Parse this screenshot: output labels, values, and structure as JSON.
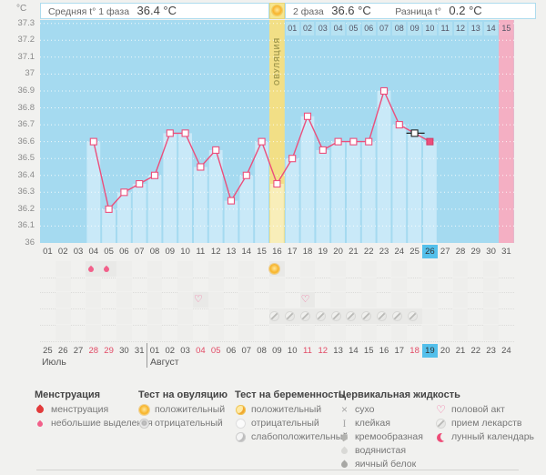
{
  "header": {
    "unit_label": "°C",
    "phase1_label": "Средняя t° 1 фаза",
    "phase1_value": "36.4 °C",
    "phase2_label": "2 фаза",
    "phase2_value": "36.6 °C",
    "diff_label": "Разница t°",
    "diff_value": "0.2 °C",
    "ovulation_label": "ОВУЛЯЦИЯ"
  },
  "chart_data": {
    "type": "line",
    "ylabel": "°C",
    "ylim": [
      36.0,
      37.3
    ],
    "yticks": [
      "37.3",
      "37.2",
      "37.1",
      "37",
      "36.9",
      "36.8",
      "36.7",
      "36.6",
      "36.5",
      "36.4",
      "36.3",
      "36.2",
      "36.1",
      "36"
    ],
    "x_days": [
      "01",
      "02",
      "03",
      "04",
      "05",
      "06",
      "07",
      "08",
      "09",
      "10",
      "11",
      "12",
      "13",
      "14",
      "15",
      "16",
      "17",
      "18",
      "19",
      "20",
      "21",
      "22",
      "23",
      "24",
      "25",
      "26",
      "27",
      "28",
      "29",
      "30",
      "31"
    ],
    "values": [
      null,
      null,
      null,
      36.6,
      36.2,
      36.3,
      36.35,
      36.4,
      36.65,
      36.65,
      36.45,
      36.55,
      36.25,
      36.4,
      36.6,
      36.35,
      36.5,
      36.75,
      36.55,
      36.6,
      36.6,
      36.6,
      36.9,
      36.7,
      36.65,
      36.6,
      null,
      null,
      null,
      null,
      null
    ],
    "ovulation_day": 16,
    "expected_period_day": 31,
    "selected_day": 26,
    "edited_day": 25,
    "dpo_labels": [
      "01",
      "02",
      "03",
      "04",
      "05",
      "06",
      "07",
      "08",
      "09",
      "10",
      "11",
      "12",
      "13",
      "14",
      "15"
    ],
    "grid": "dotted-white",
    "colors": {
      "line": "#ec4e7b",
      "bar": "#c9e9f8",
      "bar_ovulation": "#f8eeb9",
      "background": "#a5daf0",
      "ovulation_band": "#f2df86",
      "period_band": "#f4afc3",
      "selected_day": "#54c0eb"
    }
  },
  "events": {
    "menstruation_days": [
      4,
      5
    ],
    "ovulation_test_positive_days": [
      16
    ],
    "intercourse_days": [
      11,
      18
    ],
    "medication_days": [
      16,
      17,
      18,
      19,
      20,
      21,
      22,
      23,
      24,
      25
    ]
  },
  "calendar": {
    "labels": [
      "25",
      "26",
      "27",
      "28",
      "29",
      "30",
      "31",
      "01",
      "02",
      "03",
      "04",
      "05",
      "06",
      "07",
      "08",
      "09",
      "10",
      "11",
      "12",
      "13",
      "14",
      "15",
      "16",
      "17",
      "18",
      "19",
      "20",
      "21",
      "22",
      "23",
      "24"
    ],
    "weekend_indices": [
      3,
      4,
      10,
      11,
      17,
      18,
      24
    ],
    "today_index": 25,
    "month1": "Июль",
    "month2": "Август",
    "month2_start_index": 7
  },
  "legend": {
    "columns": [
      {
        "title": "Менструация",
        "items": [
          {
            "icon": "drop-large",
            "label": "менструация"
          },
          {
            "icon": "drop-small",
            "label": "небольшие выделения"
          }
        ]
      },
      {
        "title": "Тест на овуляцию",
        "items": [
          {
            "icon": "sun-positive",
            "label": "положительный"
          },
          {
            "icon": "circle-negative",
            "label": "отрицательный"
          }
        ]
      },
      {
        "title": "Тест на беременность",
        "items": [
          {
            "icon": "preg-positive",
            "label": "положительный"
          },
          {
            "icon": "preg-negative",
            "label": "отрицательный"
          },
          {
            "icon": "preg-weak",
            "label": "слабоположительный"
          }
        ]
      },
      {
        "title": "Цервикальная жидкость",
        "items": [
          {
            "icon": "dry",
            "label": "сухо"
          },
          {
            "icon": "sticky",
            "label": "клейкая"
          },
          {
            "icon": "creamy",
            "label": "кремообразная"
          },
          {
            "icon": "watery",
            "label": "водянистая"
          },
          {
            "icon": "eggwhite",
            "label": "яичный белок"
          }
        ]
      },
      {
        "title": "",
        "items": [
          {
            "icon": "heart",
            "label": "половой акт"
          },
          {
            "icon": "pill",
            "label": "прием лекарств"
          },
          {
            "icon": "moon",
            "label": "лунный календарь"
          }
        ]
      }
    ]
  }
}
